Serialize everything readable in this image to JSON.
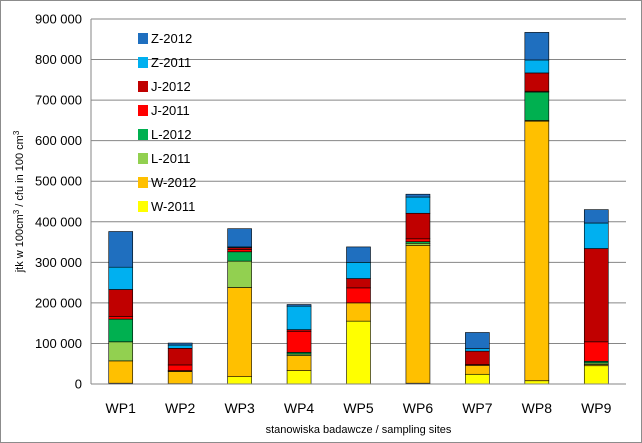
{
  "chart_data": {
    "type": "bar",
    "stacked": true,
    "categories": [
      "WP1",
      "WP2",
      "WP3",
      "WP4",
      "WP5",
      "WP6",
      "WP7",
      "WP8",
      "WP9"
    ],
    "xlabel": "stanowiska badawcze / sampling sites",
    "ylabel_main": "jtk w 100cm",
    "ylabel_sup1": "3",
    "ylabel_mid": " / cfu in 100 cm",
    "ylabel_sup2": "3",
    "ylim": [
      0,
      900000
    ],
    "yticks": [
      0,
      100000,
      200000,
      300000,
      400000,
      500000,
      600000,
      700000,
      800000,
      900000
    ],
    "ytick_labels": [
      "0",
      "100 000",
      "200 000",
      "300 000",
      "400 000",
      "500 000",
      "600 000",
      "700 000",
      "800 000",
      "900 000"
    ],
    "grid": "horizontal",
    "legend_position": "top-left inside",
    "series": [
      {
        "name": "W-2011",
        "color": "#ffff00",
        "values": [
          2000,
          1000,
          18000,
          33000,
          155000,
          2000,
          24000,
          8000,
          45000
        ]
      },
      {
        "name": "W-2012",
        "color": "#ffc000",
        "values": [
          55000,
          30000,
          220000,
          37000,
          45000,
          340000,
          22000,
          640000,
          3000
        ]
      },
      {
        "name": "L-2011",
        "color": "#92d050",
        "values": [
          47000,
          1000,
          65000,
          4000,
          0,
          5000,
          0,
          2000,
          4000
        ]
      },
      {
        "name": "L-2012",
        "color": "#00b050",
        "values": [
          56000,
          1000,
          23000,
          4000,
          0,
          4000,
          0,
          70000,
          4000
        ]
      },
      {
        "name": "J-2011",
        "color": "#ff0000",
        "values": [
          6000,
          14000,
          6000,
          52000,
          37000,
          7000,
          2000,
          2000,
          48000
        ]
      },
      {
        "name": "J-2012",
        "color": "#c00000",
        "values": [
          67000,
          41000,
          4000,
          4000,
          23000,
          63000,
          33000,
          45000,
          230000
        ]
      },
      {
        "name": "Z-2011",
        "color": "#00b0f0",
        "values": [
          55000,
          8000,
          2000,
          58000,
          40000,
          40000,
          6000,
          32000,
          63000
        ]
      },
      {
        "name": "Z-2012",
        "color": "#1f6fbf",
        "values": [
          88000,
          5000,
          45000,
          4000,
          38000,
          7000,
          40000,
          68000,
          33000
        ]
      }
    ]
  }
}
